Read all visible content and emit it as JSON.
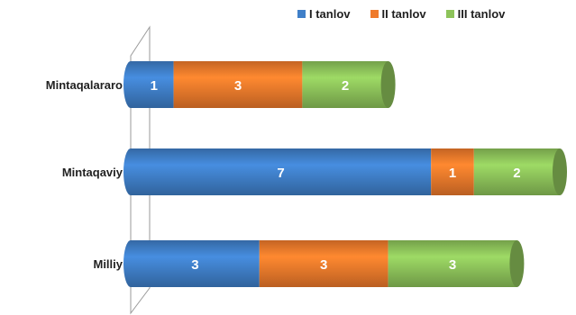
{
  "chart_data": {
    "type": "bar",
    "orientation": "horizontal",
    "stacked": true,
    "style": "3d-cylinder",
    "categories": [
      "Mintaqalararo",
      "Mintaqaviy",
      "Milliy"
    ],
    "series": [
      {
        "name": "I tanlov",
        "color": "#3f7fc8",
        "values": [
          1,
          7,
          3
        ]
      },
      {
        "name": "II tanlov",
        "color": "#ef7a2b",
        "values": [
          3,
          1,
          3
        ]
      },
      {
        "name": "III tanlov",
        "color": "#8dc35a",
        "values": [
          2,
          2,
          3
        ]
      }
    ],
    "legend_position": "top-right",
    "data_labels": true,
    "grid": false
  }
}
